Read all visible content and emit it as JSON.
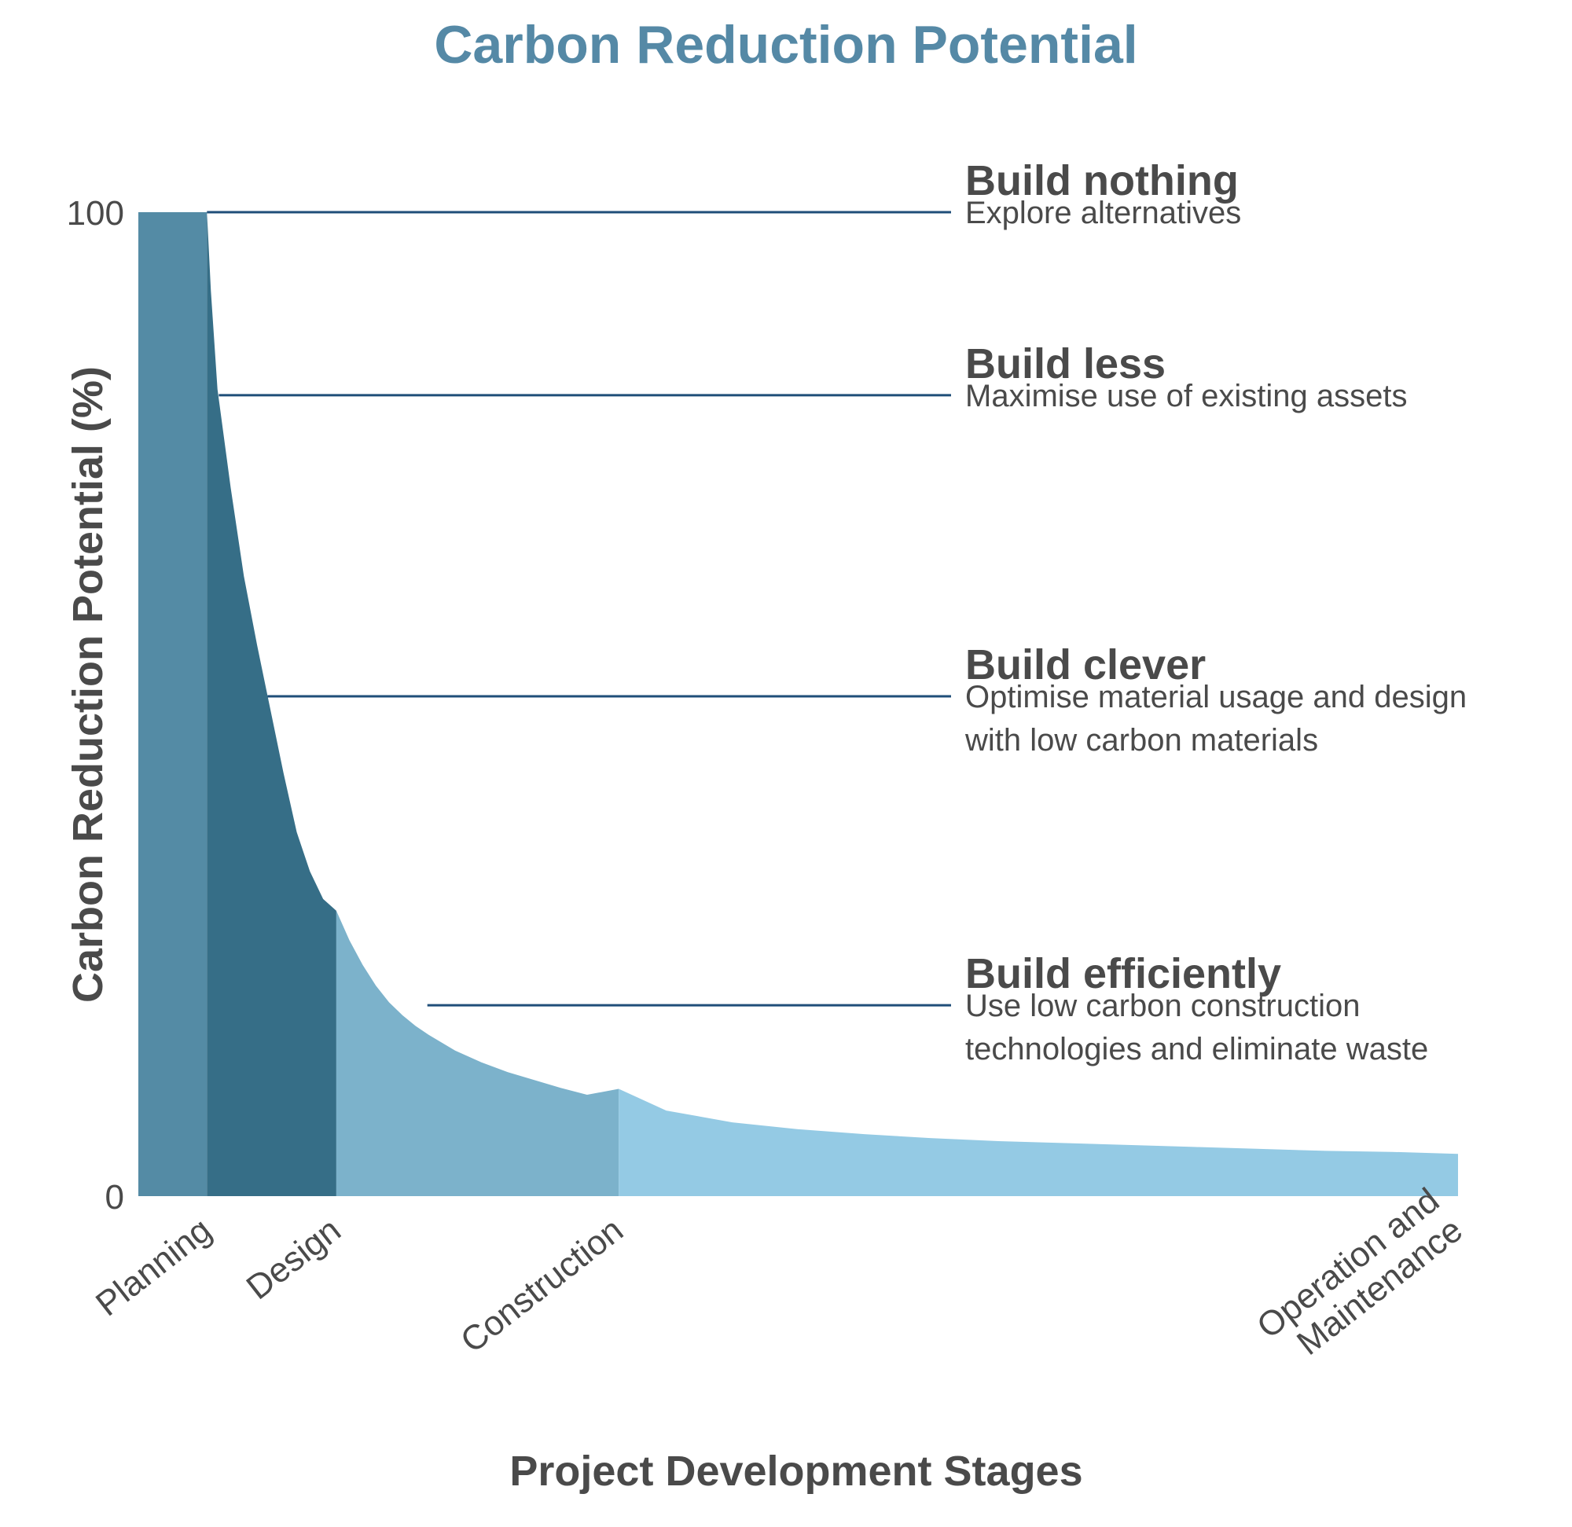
{
  "chart_data": {
    "type": "area",
    "title": "Carbon Reduction Potential",
    "xlabel": "Project Development Stages",
    "ylabel": "Carbon Reduction Potential (%)",
    "ylim": [
      0,
      100
    ],
    "yticks": [
      "0",
      "100"
    ],
    "grid": false,
    "legend": "none",
    "x_range": [
      0,
      100
    ],
    "stages": [
      {
        "label": [
          "Planning"
        ],
        "start": 0,
        "end": 5.2,
        "color": "#548ba5"
      },
      {
        "label": [
          "Design"
        ],
        "start": 5.2,
        "end": 15,
        "color": "#366e87"
      },
      {
        "label": [
          "Construction"
        ],
        "start": 15,
        "end": 36.4,
        "color": "#7cb2cb"
      },
      {
        "label": [
          "Operation and",
          "Maintenance"
        ],
        "start": 36.4,
        "end": 100,
        "color": "#94cae4"
      }
    ],
    "curve": {
      "x": [
        0,
        5.2,
        5.5,
        6,
        7,
        8,
        9,
        10,
        11,
        12,
        13,
        14,
        15,
        16,
        17,
        18,
        19,
        20,
        21,
        22,
        24,
        26,
        28,
        30,
        32,
        34,
        36.4,
        40,
        45,
        50,
        55,
        60,
        65,
        70,
        75,
        80,
        85,
        90,
        95,
        100
      ],
      "y": [
        100,
        100,
        92,
        82,
        72,
        63,
        56,
        49.5,
        43,
        37,
        33,
        30.2,
        29,
        26,
        23.5,
        21.4,
        19.7,
        18.4,
        17.3,
        16.4,
        14.8,
        13.6,
        12.6,
        11.8,
        11,
        10.3,
        10.9,
        8.7,
        7.5,
        6.8,
        6.3,
        5.9,
        5.6,
        5.4,
        5.2,
        5,
        4.8,
        4.6,
        4.5,
        4.3
      ]
    },
    "annotations": [
      {
        "y": 100,
        "x_start": 5.2,
        "title": "Build nothing",
        "lines": [
          "Explore alternatives"
        ]
      },
      {
        "y": 81.4,
        "x_start": 6.1,
        "title": "Build less",
        "lines": [
          "Maximise use of existing assets"
        ]
      },
      {
        "y": 50.8,
        "x_start": 9.8,
        "title": "Build clever",
        "lines": [
          "Optimise material usage and design",
          "with low carbon materials"
        ]
      },
      {
        "y": 19.4,
        "x_start": 21.9,
        "title": "Build efficiently",
        "lines": [
          "Use low carbon construction",
          "technologies and eliminate waste"
        ]
      }
    ],
    "colors": {
      "title": "#5589a6",
      "text": "#4a4a4a",
      "leader_line": "#1f4e79"
    }
  }
}
